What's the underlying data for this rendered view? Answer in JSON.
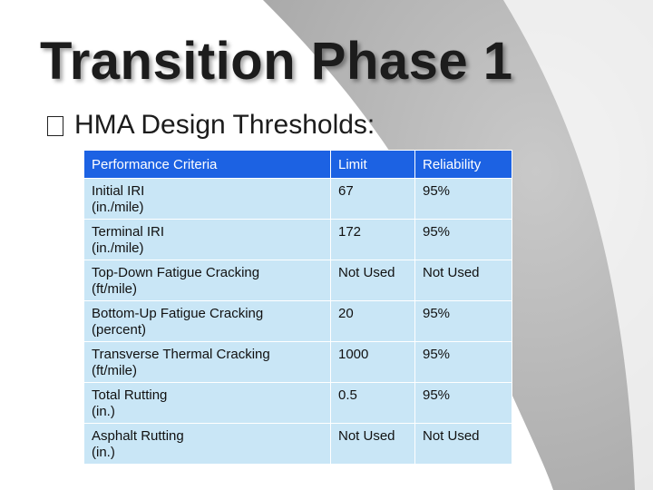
{
  "title": "Transition Phase 1",
  "bullet": {
    "icon": "empty-square-bullet-icon",
    "text": "HMA Design Thresholds:"
  },
  "table": {
    "headers": [
      "Performance Criteria",
      "Limit",
      "Reliability"
    ],
    "rows": [
      {
        "criteria": "Initial IRI",
        "unit": "(in./mile)",
        "limit": "67",
        "reliability": "95%"
      },
      {
        "criteria": "Terminal IRI",
        "unit": "(in./mile)",
        "limit": "172",
        "reliability": "95%"
      },
      {
        "criteria": "Top-Down Fatigue Cracking",
        "unit": "(ft/mile)",
        "limit": "Not Used",
        "reliability": "Not Used"
      },
      {
        "criteria": "Bottom-Up Fatigue Cracking",
        "unit": "(percent)",
        "limit": "20",
        "reliability": "95%"
      },
      {
        "criteria": "Transverse Thermal Cracking",
        "unit": "(ft/mile)",
        "limit": "1000",
        "reliability": "95%"
      },
      {
        "criteria": "Total Rutting",
        "unit": "(in.)",
        "limit": "0.5",
        "reliability": "95%"
      },
      {
        "criteria": "Asphalt Rutting",
        "unit": "(in.)",
        "limit": "Not Used",
        "reliability": "Not Used"
      }
    ]
  },
  "colors": {
    "header_bg": "#1c62e3",
    "cell_bg": "#c9e6f6",
    "background_arc": "#b5b5b5"
  }
}
